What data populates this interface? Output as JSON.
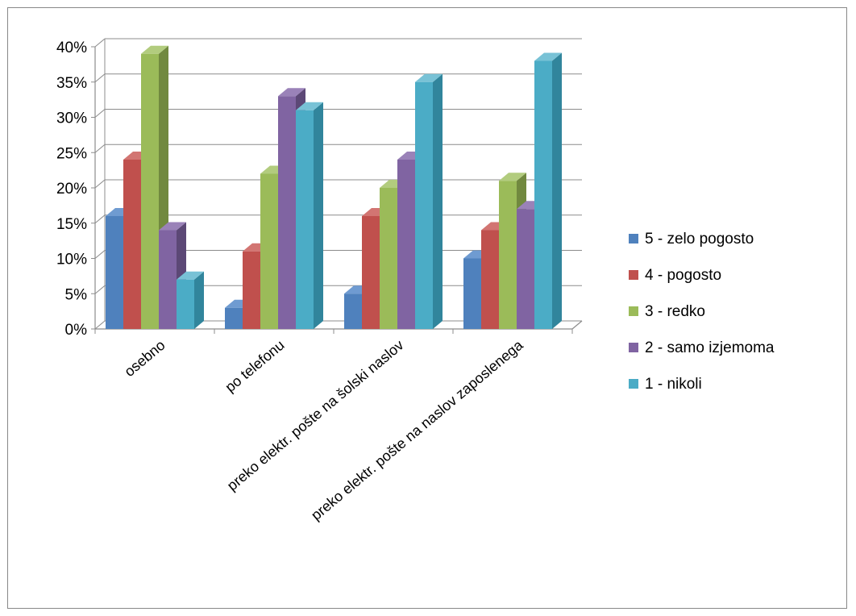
{
  "chart_data": {
    "type": "bar",
    "style": "3d-clustered-column",
    "categories": [
      "osebno",
      "po telefonu",
      "preko elektr. pošte na šolski naslov",
      "preko elektr. pošte na naslov zaposlenega"
    ],
    "series": [
      {
        "name": "5 - zelo pogosto",
        "values": [
          16,
          3,
          5,
          10
        ],
        "color": "#4F81BD",
        "side": "#385D8A",
        "top": "#6F9BD1"
      },
      {
        "name": "4 - pogosto",
        "values": [
          24,
          11,
          16,
          14
        ],
        "color": "#C0504D",
        "side": "#8C3836",
        "top": "#D27572"
      },
      {
        "name": "3 - redko",
        "values": [
          39,
          22,
          20,
          21
        ],
        "color": "#9BBB59",
        "side": "#71893F",
        "top": "#B2CC7E"
      },
      {
        "name": "2 - samo izjemoma",
        "values": [
          14,
          33,
          24,
          17
        ],
        "color": "#8064A2",
        "side": "#5C4876",
        "top": "#9A82B8"
      },
      {
        "name": "1 - nikoli",
        "values": [
          7,
          31,
          35,
          38
        ],
        "color": "#4BACC6",
        "side": "#31859C",
        "top": "#78C2D6"
      }
    ],
    "y_ticks": [
      "0%",
      "5%",
      "10%",
      "15%",
      "20%",
      "25%",
      "30%",
      "35%",
      "40%"
    ],
    "ylim": [
      0,
      40
    ],
    "y_unit": "%",
    "grid": true,
    "legend_position": "right"
  }
}
